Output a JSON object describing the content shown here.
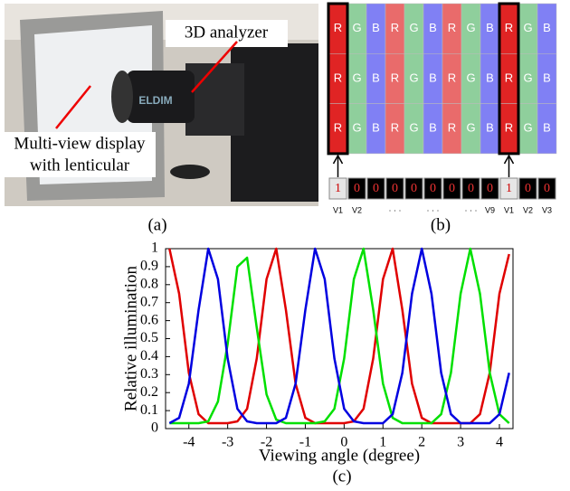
{
  "panels": {
    "a": {
      "label": "(a)",
      "analyzer_label": "3D analyzer",
      "brand": "ELDIM",
      "display_label": [
        "Multi-view display",
        "with lenticular"
      ]
    },
    "b": {
      "label": "(b)",
      "rows": [
        [
          "R",
          "G",
          "B",
          "R",
          "G",
          "B",
          "R",
          "G",
          "B",
          "R",
          "G",
          "B"
        ],
        [
          "R",
          "G",
          "B",
          "R",
          "G",
          "B",
          "R",
          "G",
          "B",
          "R",
          "G",
          "B"
        ],
        [
          "R",
          "G",
          "B",
          "R",
          "G",
          "B",
          "R",
          "G",
          "B",
          "R",
          "G",
          "B"
        ]
      ],
      "highlight_columns": [
        0,
        9
      ],
      "view_values": [
        1,
        0,
        0,
        0,
        0,
        0,
        0,
        0,
        0,
        1,
        0,
        0
      ],
      "view_labels": [
        "V1",
        "V2",
        null,
        "· · ·",
        null,
        "· · ·",
        null,
        "· · ·",
        "V9",
        "V1",
        "V2",
        "V3"
      ]
    },
    "c": {
      "label": "(c)"
    }
  },
  "chart_data": {
    "type": "line",
    "x_label": "Viewing angle (degree)",
    "y_label": "Relative illumination",
    "x": [
      -4.5,
      -4.25,
      -4,
      -3.75,
      -3.5,
      -3.25,
      -3,
      -2.75,
      -2.5,
      -2.25,
      -2,
      -1.75,
      -1.5,
      -1.25,
      -1,
      -0.75,
      -0.5,
      -0.25,
      0,
      0.25,
      0.5,
      0.75,
      1,
      1.25,
      1.5,
      1.75,
      2,
      2.25,
      2.5,
      2.75,
      3,
      3.25,
      3.5,
      3.75,
      4,
      4.25
    ],
    "series": [
      {
        "color": "#e00000",
        "values": [
          1.0,
          0.75,
          0.31,
          0.08,
          0.03,
          0.03,
          0.03,
          0.04,
          0.11,
          0.39,
          0.83,
          1.0,
          0.66,
          0.25,
          0.06,
          0.03,
          0.03,
          0.03,
          0.03,
          0.04,
          0.11,
          0.39,
          0.83,
          1.0,
          0.66,
          0.25,
          0.06,
          0.03,
          0.03,
          0.03,
          0.03,
          0.03,
          0.08,
          0.31,
          0.75,
          0.97
        ]
      },
      {
        "color": "#00e000",
        "values": [
          0.03,
          0.03,
          0.03,
          0.03,
          0.04,
          0.15,
          0.47,
          0.9,
          0.95,
          0.56,
          0.19,
          0.05,
          0.03,
          0.03,
          0.03,
          0.03,
          0.04,
          0.11,
          0.39,
          0.83,
          1.0,
          0.66,
          0.25,
          0.06,
          0.03,
          0.03,
          0.03,
          0.03,
          0.08,
          0.31,
          0.75,
          1.0,
          0.75,
          0.31,
          0.08,
          0.03
        ]
      },
      {
        "color": "#0000e0",
        "values": [
          0.03,
          0.06,
          0.25,
          0.66,
          1.0,
          0.83,
          0.39,
          0.11,
          0.04,
          0.03,
          0.03,
          0.03,
          0.06,
          0.25,
          0.66,
          1.0,
          0.83,
          0.39,
          0.11,
          0.04,
          0.03,
          0.03,
          0.03,
          0.08,
          0.31,
          0.75,
          1.0,
          0.75,
          0.31,
          0.08,
          0.03,
          0.03,
          0.03,
          0.03,
          0.08,
          0.31
        ]
      }
    ],
    "xlim": [
      -4.6,
      4.35
    ],
    "ylim": [
      0,
      1
    ],
    "xticks": [
      -4,
      -3,
      -2,
      -1,
      0,
      1,
      2,
      3,
      4
    ],
    "yticks": [
      0,
      0.1,
      0.2,
      0.3,
      0.4,
      0.5,
      0.6,
      0.7,
      0.8,
      0.9,
      1
    ]
  }
}
